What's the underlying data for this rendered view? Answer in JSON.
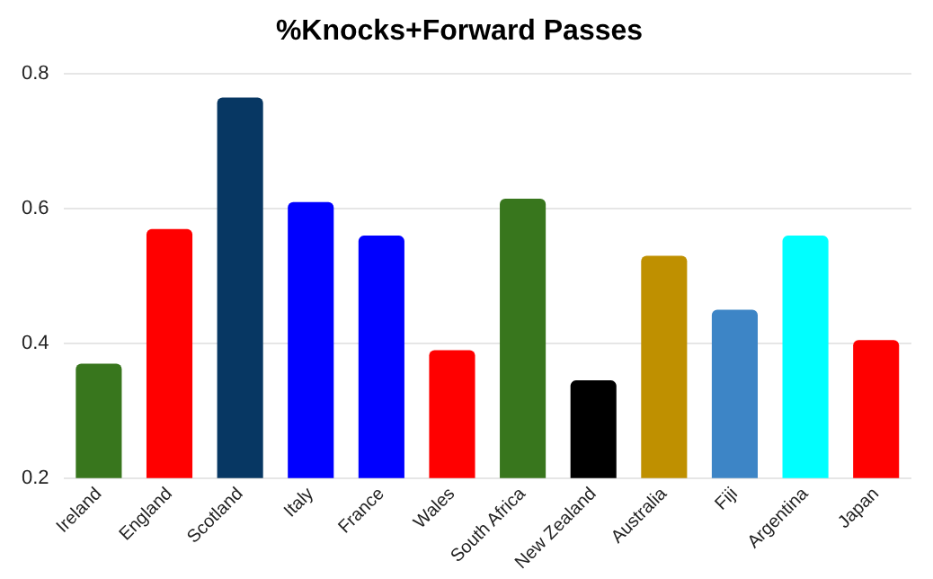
{
  "chart_data": {
    "type": "bar",
    "title": "%Knocks+Forward Passes",
    "categories": [
      "Ireland",
      "England",
      "Scotland",
      "Italy",
      "France",
      "Wales",
      "South Africa",
      "New Zealand",
      "Australia",
      "Fiji",
      "Argentina",
      "Japan"
    ],
    "values": [
      0.37,
      0.57,
      0.765,
      0.61,
      0.56,
      0.39,
      0.615,
      0.345,
      0.53,
      0.45,
      0.56,
      0.405
    ],
    "colors": [
      "#38761d",
      "#ff0000",
      "#073763",
      "#0000ff",
      "#0000ff",
      "#ff0000",
      "#38761d",
      "#000000",
      "#bf9000",
      "#3d85c6",
      "#00ffff",
      "#ff0000"
    ],
    "ylim": [
      0.2,
      0.8
    ],
    "yticks": [
      0.2,
      0.4,
      0.6,
      0.8
    ],
    "grid": "y",
    "legend": false
  }
}
